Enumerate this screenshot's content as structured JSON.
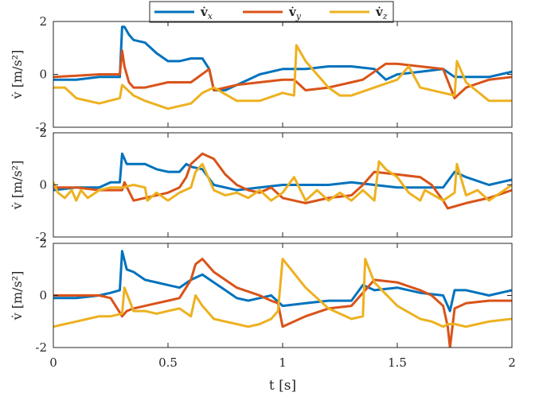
{
  "chart_data": {
    "type": "line",
    "legend": {
      "placement": "top-center",
      "entries": [
        {
          "label": "v̇",
          "sub": "x",
          "color": "#0072BD"
        },
        {
          "label": "v̇",
          "sub": "y",
          "color": "#D95319"
        },
        {
          "label": "v̇",
          "sub": "z",
          "color": "#EDB120"
        }
      ]
    },
    "xlabel": "t [s]",
    "xlim": [
      0,
      2
    ],
    "xticks": [
      0,
      0.5,
      1,
      1.5,
      2
    ],
    "xtick_labels": [
      "0",
      "0.5",
      "1",
      "1.5",
      "2"
    ],
    "grid": false,
    "panels": [
      {
        "ylabel": "v̇ [m/s²]",
        "ylim": [
          -2,
          2
        ],
        "yticks": [
          -2,
          0,
          2
        ],
        "ytick_labels": [
          "-2",
          "0",
          "2"
        ],
        "series": [
          {
            "name": "v̇x",
            "color": "#0072BD",
            "x": [
              0,
              0.1,
              0.2,
              0.29,
              0.3,
              0.31,
              0.33,
              0.35,
              0.4,
              0.45,
              0.5,
              0.55,
              0.6,
              0.65,
              0.68,
              0.7,
              0.75,
              0.8,
              0.85,
              0.9,
              1.0,
              1.1,
              1.2,
              1.3,
              1.4,
              1.45,
              1.5,
              1.6,
              1.7,
              1.75,
              1.8,
              1.9,
              2.0
            ],
            "y": [
              -0.2,
              -0.2,
              -0.1,
              -0.1,
              1.8,
              1.8,
              1.5,
              1.3,
              1.2,
              0.8,
              0.5,
              0.5,
              0.6,
              0.6,
              0.2,
              -0.6,
              -0.6,
              -0.4,
              -0.2,
              0.0,
              0.2,
              0.2,
              0.3,
              0.3,
              0.2,
              -0.2,
              0.0,
              0.1,
              0.2,
              -0.1,
              -0.1,
              -0.1,
              0.1
            ]
          },
          {
            "name": "v̇y",
            "color": "#D95319",
            "x": [
              0,
              0.1,
              0.2,
              0.29,
              0.3,
              0.31,
              0.33,
              0.35,
              0.4,
              0.5,
              0.6,
              0.68,
              0.7,
              0.8,
              0.9,
              1.0,
              1.05,
              1.1,
              1.2,
              1.3,
              1.35,
              1.4,
              1.45,
              1.5,
              1.6,
              1.7,
              1.75,
              1.8,
              1.9,
              2.0
            ],
            "y": [
              -0.1,
              -0.05,
              0.0,
              0.0,
              0.9,
              0.3,
              -0.3,
              -0.5,
              -0.5,
              -0.3,
              -0.3,
              0.2,
              -0.6,
              -0.4,
              -0.3,
              -0.2,
              -0.2,
              -0.6,
              -0.5,
              -0.3,
              -0.2,
              0.1,
              0.4,
              0.4,
              0.3,
              0.2,
              -0.9,
              -0.5,
              -0.2,
              -0.1
            ]
          },
          {
            "name": "v̇z",
            "color": "#EDB120",
            "x": [
              0,
              0.05,
              0.1,
              0.2,
              0.29,
              0.3,
              0.35,
              0.4,
              0.5,
              0.6,
              0.65,
              0.7,
              0.8,
              0.9,
              1.0,
              1.05,
              1.06,
              1.1,
              1.2,
              1.25,
              1.3,
              1.4,
              1.5,
              1.55,
              1.6,
              1.7,
              1.75,
              1.76,
              1.8,
              1.9,
              2.0
            ],
            "y": [
              -0.5,
              -0.5,
              -0.9,
              -1.1,
              -0.9,
              -0.4,
              -0.8,
              -1.0,
              -1.3,
              -1.1,
              -0.7,
              -0.5,
              -1.0,
              -1.0,
              -0.7,
              -0.8,
              1.1,
              0.5,
              -0.5,
              -0.8,
              -0.8,
              -0.5,
              -0.2,
              0.3,
              -0.5,
              -0.7,
              -0.8,
              0.5,
              -0.3,
              -1.0,
              -1.0
            ]
          }
        ]
      },
      {
        "ylabel": "v̇ [m/s²]",
        "ylim": [
          -2,
          2
        ],
        "yticks": [
          -2,
          0,
          2
        ],
        "ytick_labels": [
          "-2",
          "0",
          "2"
        ],
        "series": [
          {
            "name": "v̇x",
            "color": "#0072BD",
            "x": [
              0,
              0.1,
              0.2,
              0.25,
              0.29,
              0.3,
              0.32,
              0.35,
              0.4,
              0.45,
              0.5,
              0.55,
              0.58,
              0.6,
              0.65,
              0.7,
              0.8,
              0.9,
              1.0,
              1.1,
              1.2,
              1.3,
              1.4,
              1.5,
              1.6,
              1.7,
              1.75,
              1.8,
              1.9,
              2.0
            ],
            "y": [
              -0.2,
              -0.1,
              -0.1,
              0.1,
              0.1,
              1.2,
              0.8,
              0.8,
              0.8,
              0.6,
              0.5,
              0.5,
              0.8,
              0.7,
              0.6,
              0.0,
              -0.2,
              -0.1,
              0.0,
              0.0,
              0.0,
              0.1,
              0.0,
              -0.1,
              -0.1,
              -0.1,
              0.5,
              0.3,
              0.0,
              0.2
            ]
          },
          {
            "name": "v̇y",
            "color": "#D95319",
            "x": [
              0,
              0.1,
              0.2,
              0.3,
              0.31,
              0.35,
              0.4,
              0.5,
              0.55,
              0.58,
              0.6,
              0.65,
              0.7,
              0.75,
              0.8,
              0.85,
              0.9,
              0.95,
              1.0,
              1.05,
              1.1,
              1.2,
              1.3,
              1.35,
              1.4,
              1.5,
              1.6,
              1.65,
              1.7,
              1.72,
              1.8,
              1.9,
              2.0
            ],
            "y": [
              -0.1,
              -0.1,
              -0.2,
              -0.2,
              0.1,
              -0.6,
              -0.5,
              -0.3,
              -0.1,
              0.3,
              0.8,
              1.2,
              1.0,
              0.4,
              0.0,
              -0.2,
              -0.3,
              -0.1,
              -0.5,
              -0.6,
              -0.7,
              -0.5,
              -0.4,
              0.0,
              0.5,
              0.4,
              0.3,
              0.0,
              -0.6,
              -0.9,
              -0.7,
              -0.5,
              -0.2
            ]
          },
          {
            "name": "v̇z",
            "color": "#EDB120",
            "x": [
              0,
              0.02,
              0.05,
              0.08,
              0.1,
              0.12,
              0.15,
              0.2,
              0.25,
              0.3,
              0.35,
              0.4,
              0.41,
              0.45,
              0.5,
              0.55,
              0.6,
              0.62,
              0.65,
              0.7,
              0.75,
              0.8,
              0.85,
              0.9,
              0.95,
              1.0,
              1.05,
              1.1,
              1.15,
              1.2,
              1.25,
              1.3,
              1.35,
              1.4,
              1.42,
              1.45,
              1.5,
              1.55,
              1.6,
              1.62,
              1.7,
              1.75,
              1.76,
              1.8,
              1.85,
              1.9,
              1.95,
              2.0
            ],
            "y": [
              0.1,
              -0.3,
              -0.5,
              -0.2,
              -0.6,
              -0.2,
              -0.5,
              -0.2,
              -0.1,
              -0.1,
              0.0,
              -0.1,
              -0.6,
              -0.3,
              -0.6,
              -0.3,
              -0.1,
              0.5,
              0.8,
              -0.2,
              -0.4,
              -0.3,
              -0.5,
              -0.2,
              -0.6,
              -0.3,
              0.3,
              -0.6,
              -0.2,
              -0.6,
              -0.3,
              -0.6,
              -0.2,
              -0.6,
              0.9,
              0.6,
              0.3,
              -0.3,
              -0.6,
              -0.2,
              -0.6,
              -0.3,
              0.8,
              -0.4,
              -0.2,
              -0.6,
              -0.3,
              0.0
            ]
          }
        ]
      },
      {
        "ylabel": "v̇ [m/s²]",
        "ylim": [
          -2,
          2
        ],
        "yticks": [
          -2,
          0,
          2
        ],
        "ytick_labels": [
          "-2",
          "0",
          "2"
        ],
        "series": [
          {
            "name": "v̇x",
            "color": "#0072BD",
            "x": [
              0,
              0.1,
              0.2,
              0.25,
              0.29,
              0.3,
              0.32,
              0.35,
              0.4,
              0.45,
              0.5,
              0.55,
              0.6,
              0.65,
              0.7,
              0.75,
              0.8,
              0.85,
              0.9,
              0.95,
              1.0,
              1.1,
              1.2,
              1.3,
              1.35,
              1.4,
              1.5,
              1.6,
              1.7,
              1.73,
              1.75,
              1.8,
              1.9,
              2.0
            ],
            "y": [
              -0.1,
              -0.1,
              0.0,
              0.1,
              0.2,
              1.7,
              1.0,
              0.9,
              0.6,
              0.5,
              0.4,
              0.3,
              0.6,
              0.8,
              0.5,
              0.2,
              -0.1,
              -0.2,
              -0.1,
              0.0,
              -0.4,
              -0.3,
              -0.2,
              -0.2,
              0.4,
              0.2,
              0.3,
              0.1,
              0.0,
              -0.6,
              0.2,
              0.2,
              0.0,
              0.2
            ]
          },
          {
            "name": "v̇y",
            "color": "#D95319",
            "x": [
              0,
              0.1,
              0.2,
              0.25,
              0.3,
              0.32,
              0.35,
              0.4,
              0.5,
              0.55,
              0.6,
              0.62,
              0.65,
              0.7,
              0.75,
              0.8,
              0.9,
              0.95,
              0.98,
              1.0,
              1.1,
              1.2,
              1.3,
              1.35,
              1.4,
              1.5,
              1.6,
              1.65,
              1.7,
              1.72,
              1.73,
              1.75,
              1.8,
              1.9,
              2.0
            ],
            "y": [
              0.0,
              0.0,
              0.0,
              -0.1,
              -0.8,
              -0.6,
              -0.5,
              -0.4,
              -0.2,
              -0.1,
              0.6,
              1.2,
              1.4,
              0.9,
              0.6,
              0.3,
              0.0,
              -0.2,
              -0.3,
              -1.2,
              -0.8,
              -0.5,
              -0.4,
              0.1,
              0.6,
              0.5,
              0.2,
              0.0,
              -0.4,
              -1.2,
              -2.0,
              -0.5,
              -0.3,
              -0.2,
              -0.2
            ]
          },
          {
            "name": "v̇z",
            "color": "#EDB120",
            "x": [
              0,
              0.05,
              0.1,
              0.15,
              0.2,
              0.25,
              0.3,
              0.31,
              0.35,
              0.4,
              0.45,
              0.5,
              0.55,
              0.6,
              0.62,
              0.65,
              0.7,
              0.75,
              0.8,
              0.85,
              0.9,
              0.95,
              0.98,
              1.0,
              1.1,
              1.2,
              1.3,
              1.35,
              1.36,
              1.4,
              1.5,
              1.6,
              1.65,
              1.7,
              1.72,
              1.73,
              1.75,
              1.8,
              1.85,
              1.9,
              2.0
            ],
            "y": [
              -1.2,
              -1.1,
              -1.0,
              -0.9,
              -0.8,
              -0.8,
              -0.7,
              0.3,
              -0.6,
              -0.6,
              -0.7,
              -0.6,
              -0.5,
              -0.8,
              0.0,
              -0.4,
              -0.9,
              -1.0,
              -1.1,
              -1.2,
              -1.1,
              -0.9,
              -0.6,
              1.4,
              0.3,
              -0.5,
              -0.9,
              -0.8,
              1.4,
              0.5,
              -0.4,
              -0.9,
              -1.0,
              -1.2,
              -1.1,
              -1.1,
              -1.1,
              -1.2,
              -1.1,
              -1.0,
              -0.9
            ]
          }
        ]
      }
    ]
  }
}
